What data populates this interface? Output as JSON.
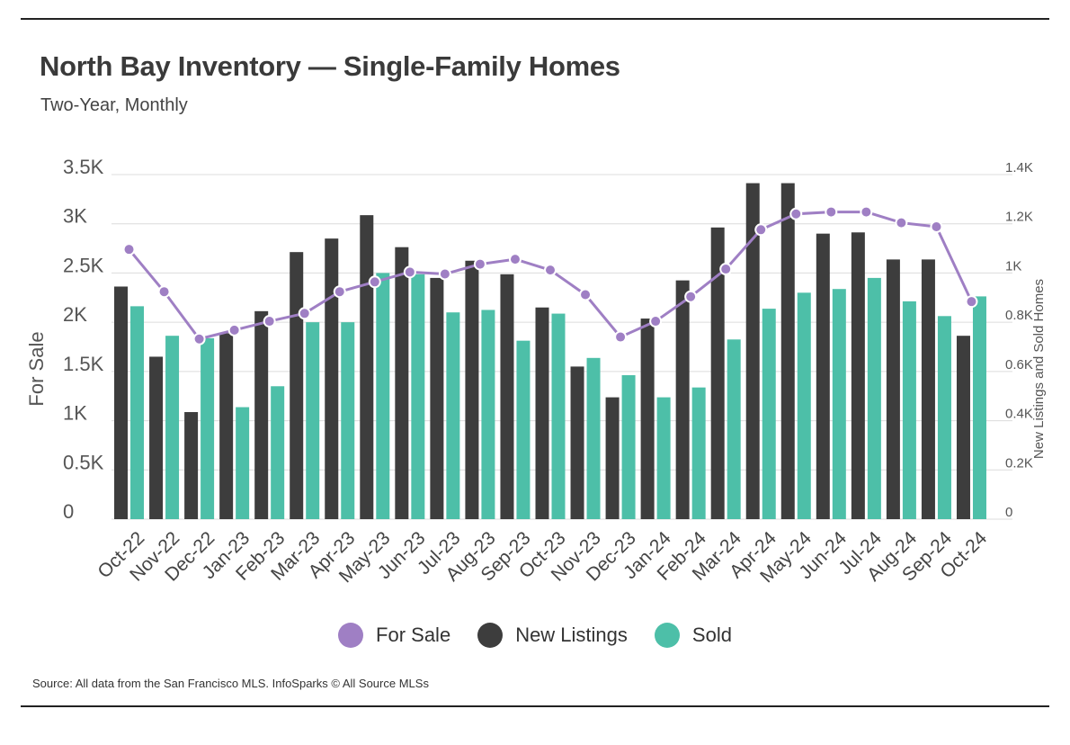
{
  "header": {
    "title": "North Bay Inventory — Single-Family Homes",
    "subtitle": "Two-Year, Monthly"
  },
  "footer": {
    "source": "Source:  All data from the San Francisco MLS. InfoSparks © All Source MLSs"
  },
  "colors": {
    "for_sale": "#9f7fc4",
    "new_listings": "#3d3d3d",
    "sold": "#4dbfa8",
    "grid": "#dcdcdc"
  },
  "chart_data": {
    "type": "bar",
    "categories": [
      "Oct-22",
      "Nov-22",
      "Dec-22",
      "Jan-23",
      "Feb-23",
      "Mar-23",
      "Apr-23",
      "May-23",
      "Jun-23",
      "Jul-23",
      "Aug-23",
      "Sep-23",
      "Oct-23",
      "Nov-23",
      "Dec-23",
      "Jan-24",
      "Feb-24",
      "Mar-24",
      "Apr-24",
      "May-24",
      "Jun-24",
      "Jul-24",
      "Aug-24",
      "Sep-24",
      "Oct-24"
    ],
    "ylabel_left": "For Sale",
    "ylabel_right": "New Listings and Sold Homes",
    "ylim_left": [
      0,
      3500
    ],
    "ylim_right": [
      0,
      1400
    ],
    "left_ticks": [
      {
        "v": 0,
        "label": "0"
      },
      {
        "v": 500,
        "label": "0.5K"
      },
      {
        "v": 1000,
        "label": "1K"
      },
      {
        "v": 1500,
        "label": "1.5K"
      },
      {
        "v": 2000,
        "label": "2K"
      },
      {
        "v": 2500,
        "label": "2.5K"
      },
      {
        "v": 3000,
        "label": "3K"
      },
      {
        "v": 3500,
        "label": "3.5K"
      }
    ],
    "right_ticks": [
      {
        "v": 0,
        "label": "0"
      },
      {
        "v": 200,
        "label": "0.2K"
      },
      {
        "v": 400,
        "label": "0.4K"
      },
      {
        "v": 600,
        "label": "0.6K"
      },
      {
        "v": 800,
        "label": "0.8K"
      },
      {
        "v": 1000,
        "label": "1K"
      },
      {
        "v": 1200,
        "label": "1.2K"
      },
      {
        "v": 1400,
        "label": "1.4K"
      }
    ],
    "grid": true,
    "legend_position": "bottom",
    "series": [
      {
        "name": "For Sale",
        "type": "line",
        "axis": "left",
        "values": [
          2740,
          2310,
          1830,
          1920,
          2010,
          2090,
          2310,
          2410,
          2510,
          2490,
          2590,
          2640,
          2530,
          2280,
          1850,
          2010,
          2260,
          2540,
          2940,
          3100,
          3120,
          3120,
          3010,
          2970,
          2210
        ]
      },
      {
        "name": "New Listings",
        "type": "bar",
        "axis": "right",
        "values": [
          945,
          660,
          435,
          755,
          845,
          1085,
          1140,
          1235,
          1105,
          980,
          1050,
          995,
          860,
          620,
          495,
          815,
          970,
          1185,
          1365,
          1365,
          1160,
          1165,
          1055,
          1055,
          745
        ]
      },
      {
        "name": "Sold",
        "type": "bar",
        "axis": "right",
        "values": [
          865,
          745,
          735,
          455,
          540,
          800,
          800,
          1000,
          995,
          840,
          850,
          725,
          835,
          655,
          585,
          495,
          535,
          730,
          855,
          920,
          935,
          980,
          885,
          825,
          905
        ]
      }
    ]
  }
}
